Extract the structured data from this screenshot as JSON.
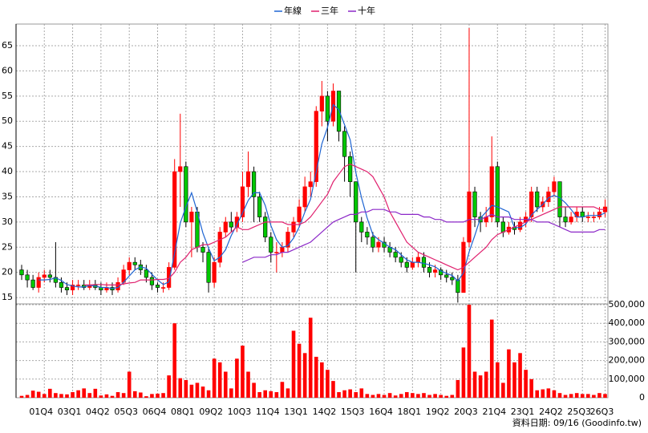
{
  "chart_data": {
    "type": "candlestick",
    "legend": "top",
    "grid": true,
    "footer": "資料日期: 09/16 (Goodinfo.tw)",
    "categories": [
      null,
      null,
      null,
      null,
      "01Q4",
      null,
      null,
      null,
      null,
      "03Q1",
      null,
      null,
      null,
      null,
      "04Q2",
      null,
      null,
      null,
      null,
      "05Q3",
      null,
      null,
      null,
      null,
      "06Q4",
      null,
      null,
      null,
      null,
      "08Q1",
      null,
      null,
      null,
      null,
      "09Q2",
      null,
      null,
      null,
      null,
      "10Q3",
      null,
      null,
      null,
      null,
      "11Q4",
      null,
      null,
      null,
      null,
      "13Q1",
      null,
      null,
      null,
      null,
      "14Q2",
      null,
      null,
      null,
      null,
      "15Q3",
      null,
      null,
      null,
      null,
      "16Q4",
      null,
      null,
      null,
      null,
      "18Q1",
      null,
      null,
      null,
      null,
      "19Q2",
      null,
      null,
      null,
      null,
      "20Q3",
      null,
      null,
      null,
      null,
      "21Q4",
      null,
      null,
      null,
      null,
      "23Q1",
      null,
      null,
      null,
      null,
      "24Q2",
      null,
      null,
      null,
      null,
      "25Q3",
      null,
      null,
      null,
      "26Q3"
    ],
    "open": [
      20.5,
      19.5,
      18.5,
      17,
      19,
      19.5,
      19,
      18,
      17,
      16.5,
      17.5,
      17.5,
      17,
      17.5,
      17,
      16.5,
      17,
      16.5,
      18,
      20.5,
      22,
      21.5,
      20.5,
      19,
      17.5,
      17,
      17,
      21,
      40,
      41,
      30,
      32,
      25,
      24,
      18,
      22,
      28,
      30,
      29,
      31,
      37,
      40,
      35,
      31,
      27,
      24,
      24,
      25,
      28,
      30,
      33,
      37,
      38,
      52,
      55,
      50,
      56,
      48,
      43,
      38,
      30,
      28,
      27,
      25,
      26,
      25,
      24,
      23,
      22,
      21,
      22,
      23,
      21,
      20,
      20.5,
      19.5,
      19,
      18.5,
      16,
      26,
      36,
      31,
      30,
      31,
      41,
      30,
      28,
      29,
      28.5,
      30,
      31,
      36,
      33,
      34,
      36,
      38,
      31,
      30,
      31,
      32,
      31,
      31,
      31,
      32
    ],
    "high": [
      21.5,
      20.5,
      19.5,
      20,
      20.5,
      20.5,
      26,
      19,
      18,
      18.5,
      18.5,
      18.5,
      18.5,
      18.5,
      18,
      18,
      18,
      19,
      21.5,
      23,
      23,
      22.5,
      21.5,
      20,
      18,
      18,
      22,
      42.5,
      51.5,
      42,
      33,
      33,
      26,
      25,
      23,
      29,
      31,
      32,
      32,
      40,
      44,
      41,
      36,
      32,
      28,
      26,
      26,
      29,
      31,
      34.5,
      39,
      40,
      53,
      58,
      56,
      57.5,
      56,
      49,
      44,
      38,
      31,
      29,
      28,
      27,
      27,
      26,
      25,
      24,
      23,
      23,
      24,
      24,
      22,
      21.5,
      21,
      20.5,
      20,
      19.5,
      27,
      68.5,
      37,
      32,
      33,
      47,
      42,
      31,
      30,
      30,
      31,
      32,
      37,
      37,
      35,
      37,
      39,
      38,
      33,
      32,
      33,
      33,
      32,
      32,
      33,
      34.5
    ],
    "low": [
      18.5,
      17,
      16.5,
      16,
      18,
      18,
      17,
      16,
      15.5,
      15.5,
      16.5,
      16.5,
      16.5,
      16.5,
      15.5,
      16,
      15.5,
      16,
      17.5,
      19.5,
      20.5,
      19.5,
      18,
      16.5,
      16,
      16,
      16.5,
      20.5,
      33,
      29,
      23,
      24,
      22,
      16,
      17,
      21,
      27,
      28,
      28,
      30,
      35,
      30,
      30,
      26,
      22,
      20,
      23,
      24,
      27,
      29,
      32,
      35,
      37,
      49,
      46,
      49,
      46,
      38,
      35,
      20,
      26,
      25.5,
      24,
      24,
      24,
      23,
      22,
      21,
      20,
      20.5,
      21,
      20,
      19,
      19,
      18.5,
      18,
      17.5,
      14,
      16,
      25,
      29,
      28,
      29,
      30,
      29,
      27,
      27.5,
      27.5,
      28,
      29,
      30,
      32,
      32,
      33,
      35,
      29,
      29,
      29.5,
      30,
      30,
      30,
      30,
      30.5,
      31
    ],
    "close": [
      19.5,
      18.5,
      17,
      19,
      19.5,
      19,
      18,
      17,
      16.5,
      17.5,
      17.5,
      17,
      17.5,
      17,
      16.5,
      17,
      16.5,
      18,
      20.5,
      22,
      21.5,
      20.5,
      19,
      17.5,
      17,
      17,
      21,
      40,
      41,
      30,
      32,
      25,
      24,
      18,
      22,
      28,
      30,
      29,
      31,
      37,
      40,
      35,
      31,
      27,
      24,
      24,
      25,
      28,
      30,
      33,
      37,
      38,
      52,
      55,
      50,
      56,
      48,
      43,
      38,
      30,
      28,
      27,
      25,
      26,
      25,
      24,
      23,
      22,
      21,
      22,
      23,
      21,
      20,
      20.5,
      19.5,
      19,
      18.5,
      16,
      26,
      36,
      31,
      30,
      31,
      41,
      30,
      28,
      29,
      28.5,
      30,
      31,
      36,
      33,
      34,
      36,
      38,
      31,
      30,
      31,
      32,
      31,
      31,
      31,
      32,
      33
    ],
    "up_color": "#ff0000",
    "down_color": "#00c800",
    "series": [
      {
        "name": "年線",
        "color": "#1e64d2",
        "values": [
          null,
          null,
          null,
          18.5,
          18.5,
          18.6,
          18.9,
          18.4,
          17.6,
          17.3,
          17.1,
          17.1,
          17.4,
          17.3,
          17,
          17,
          16.8,
          17,
          18,
          19.3,
          20.5,
          21.1,
          20.8,
          19.6,
          18.5,
          17.6,
          18.1,
          23.8,
          29.8,
          33,
          35.8,
          32,
          27.8,
          24.8,
          22.3,
          23,
          24.5,
          27.3,
          29.5,
          31.8,
          34.3,
          35.8,
          35.8,
          33.3,
          29.3,
          26.5,
          25,
          25.3,
          26.8,
          29,
          32,
          34.5,
          40,
          45.5,
          48.8,
          53.3,
          52.3,
          49.3,
          46.3,
          39.8,
          34.8,
          30.8,
          27.5,
          26.5,
          25.8,
          25,
          24.5,
          23.5,
          22.5,
          22,
          22,
          21.8,
          21.5,
          21.1,
          20.3,
          19.8,
          19.4,
          18.3,
          19.9,
          24.1,
          27.3,
          30.8,
          32,
          33.3,
          33,
          32.5,
          32,
          28.9,
          28.9,
          29.6,
          31.4,
          32.5,
          33.5,
          34.8,
          35.3,
          34.8,
          33.8,
          32.5,
          31,
          31,
          31.3,
          31.3,
          31.3,
          31.8
        ]
      },
      {
        "name": "三年",
        "color": "#e0206e",
        "values": [
          null,
          null,
          null,
          null,
          null,
          null,
          null,
          null,
          null,
          null,
          null,
          17.5,
          17.5,
          17.6,
          17.6,
          17.5,
          17.5,
          17.5,
          17.7,
          17.9,
          18,
          18.5,
          18.5,
          18.5,
          18.6,
          18.6,
          18.8,
          20,
          22,
          23,
          24.5,
          25,
          25.5,
          25.5,
          26,
          26.5,
          27,
          28,
          29,
          28.5,
          28.5,
          29,
          29.5,
          30,
          30,
          30,
          30,
          29.5,
          29.5,
          29.5,
          30,
          31,
          32.5,
          34,
          35.5,
          38,
          39.5,
          41,
          41.5,
          41,
          40.5,
          40,
          39,
          37,
          35,
          32,
          30,
          28,
          26,
          25,
          24,
          23.5,
          23,
          22.5,
          22,
          21.5,
          21,
          20.5,
          21,
          22,
          23,
          24,
          25,
          26.5,
          27.5,
          28,
          28.5,
          29,
          29.5,
          30,
          30.5,
          31,
          31.5,
          32,
          32.5,
          33,
          33,
          33,
          33,
          33,
          33,
          33,
          32.5,
          32.5
        ]
      },
      {
        "name": "十年",
        "color": "#8c28c8",
        "values": [
          null,
          null,
          null,
          null,
          null,
          null,
          null,
          null,
          null,
          null,
          null,
          null,
          null,
          null,
          null,
          null,
          null,
          null,
          null,
          null,
          null,
          null,
          null,
          null,
          null,
          null,
          null,
          null,
          null,
          null,
          null,
          null,
          null,
          null,
          null,
          null,
          null,
          null,
          null,
          22,
          22.5,
          23,
          23,
          23,
          23.5,
          23.5,
          24,
          24,
          24.5,
          25,
          25.5,
          26,
          27,
          28,
          29,
          30,
          30.5,
          31,
          31.5,
          31.5,
          32,
          32,
          32.5,
          32.5,
          32.5,
          32,
          32,
          31.5,
          31.5,
          31.5,
          31.5,
          31,
          31,
          30.5,
          30.5,
          30,
          30,
          30,
          30,
          30.5,
          30.5,
          30.5,
          31,
          31.5,
          31,
          31,
          31,
          30.5,
          30.5,
          30.5,
          30.5,
          30,
          30,
          30,
          29.5,
          29,
          28.5,
          28,
          28,
          28,
          28,
          28,
          28.5,
          28.5
        ]
      }
    ],
    "volume": {
      "axis": "y2",
      "color": "#ff0000",
      "values": [
        10000,
        15000,
        38000,
        32000,
        20000,
        48000,
        25000,
        20000,
        18000,
        30000,
        40000,
        50000,
        25000,
        48000,
        12000,
        18000,
        10000,
        30000,
        25000,
        140000,
        35000,
        28000,
        8000,
        20000,
        22000,
        25000,
        120000,
        400000,
        105000,
        95000,
        70000,
        80000,
        60000,
        40000,
        210000,
        190000,
        140000,
        50000,
        210000,
        280000,
        140000,
        80000,
        30000,
        40000,
        35000,
        30000,
        85000,
        50000,
        360000,
        290000,
        240000,
        430000,
        220000,
        190000,
        150000,
        90000,
        30000,
        40000,
        45000,
        30000,
        50000,
        20000,
        15000,
        20000,
        15000,
        25000,
        12000,
        20000,
        30000,
        25000,
        20000,
        25000,
        15000,
        20000,
        15000,
        10000,
        15000,
        95000,
        270000,
        500000,
        140000,
        120000,
        140000,
        420000,
        190000,
        80000,
        260000,
        190000,
        240000,
        150000,
        100000,
        40000,
        45000,
        50000,
        40000,
        25000,
        15000,
        20000,
        25000,
        20000,
        20000,
        15000,
        25000,
        20000
      ]
    },
    "ylim": [
      13.9,
      69.3
    ],
    "yticks": [
      15,
      20,
      25,
      30,
      35,
      40,
      45,
      50,
      55,
      60,
      65
    ],
    "y2lim": [
      0,
      500000
    ],
    "y2ticks": [
      0,
      {
        "value": 100000,
        "label": "100,000"
      },
      {
        "value": 200000,
        "label": "200,000"
      },
      {
        "value": 300000,
        "label": "300,000"
      },
      {
        "value": 400000,
        "label": "400,000"
      },
      {
        "value": 500000,
        "label": "500,000"
      }
    ]
  }
}
